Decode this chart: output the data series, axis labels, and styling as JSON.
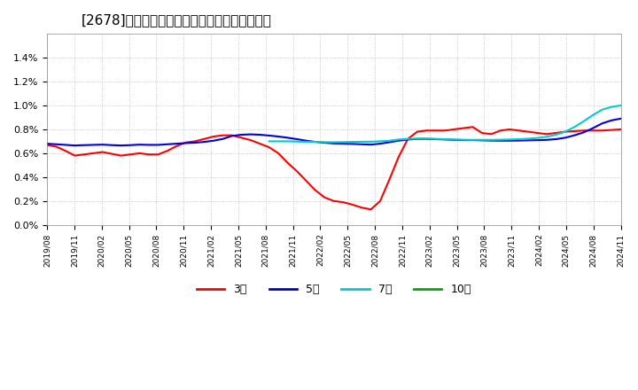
{
  "title": "[2678]　当期純利益マージンの標準偏差の推移",
  "ylabel": "",
  "ylim": [
    0.0,
    0.016
  ],
  "yticks": [
    0.0,
    0.002,
    0.004,
    0.006,
    0.008,
    0.01,
    0.012,
    0.014
  ],
  "ytick_labels": [
    "0.0%",
    "0.2%",
    "0.4%",
    "0.6%",
    "0.8%",
    "1.0%",
    "1.2%",
    "1.4%"
  ],
  "background_color": "#ffffff",
  "plot_bg_color": "#ffffff",
  "grid_color": "#aaaaaa",
  "series": {
    "3year": {
      "color": "#ff0000",
      "label": "3年",
      "data": [
        0.0067,
        0.00655,
        0.0062,
        0.0058,
        0.0059,
        0.006,
        0.0061,
        0.00595,
        0.0058,
        0.0059,
        0.006,
        0.0059,
        0.0059,
        0.0062,
        0.0066,
        0.0069,
        0.007,
        0.0072,
        0.0074,
        0.0075,
        0.0075,
        0.0073,
        0.0071,
        0.0068,
        0.0065,
        0.006,
        0.0052,
        0.0045,
        0.0037,
        0.0029,
        0.0023,
        0.002,
        0.0019,
        0.0017,
        0.00145,
        0.0013,
        0.002,
        0.0038,
        0.0057,
        0.0072,
        0.0078,
        0.0079,
        0.0079,
        0.0079,
        0.008,
        0.0081,
        0.0082,
        0.0077,
        0.0076,
        0.0079,
        0.008,
        0.0079,
        0.0078,
        0.0077,
        0.0076,
        0.0077,
        0.0078,
        0.00785,
        0.0079,
        0.0079,
        0.0079,
        0.00795,
        0.008
      ]
    },
    "5year": {
      "color": "#0000dd",
      "label": "5年",
      "data": [
        0.0068,
        0.00675,
        0.0067,
        0.00665,
        0.00668,
        0.0067,
        0.00672,
        0.00668,
        0.00665,
        0.00668,
        0.00672,
        0.0067,
        0.0067,
        0.00675,
        0.0068,
        0.00685,
        0.00688,
        0.00695,
        0.00705,
        0.0072,
        0.00745,
        0.00755,
        0.00758,
        0.00755,
        0.00748,
        0.0074,
        0.0073,
        0.00718,
        0.00705,
        0.00695,
        0.00688,
        0.00682,
        0.0068,
        0.00678,
        0.00675,
        0.00672,
        0.0068,
        0.00692,
        0.00705,
        0.00715,
        0.0072,
        0.0072,
        0.00718,
        0.00715,
        0.00712,
        0.0071,
        0.0071,
        0.00708,
        0.00706,
        0.00705,
        0.00705,
        0.00706,
        0.00708,
        0.0071,
        0.00712,
        0.00718,
        0.0073,
        0.0075,
        0.00775,
        0.0081,
        0.0085,
        0.00875,
        0.0089
      ]
    },
    "7year": {
      "color": "#00cccc",
      "label": "7年",
      "data": [
        null,
        null,
        null,
        null,
        null,
        null,
        null,
        null,
        null,
        null,
        null,
        null,
        null,
        null,
        null,
        null,
        null,
        null,
        null,
        null,
        null,
        null,
        null,
        null,
        0.007,
        0.007,
        0.007,
        0.00698,
        0.00696,
        0.00695,
        0.00693,
        0.00692,
        0.00693,
        0.00695,
        0.00696,
        0.00697,
        0.007,
        0.00705,
        0.00715,
        0.0072,
        0.00722,
        0.00722,
        0.0072,
        0.00718,
        0.00715,
        0.00713,
        0.00712,
        0.00712,
        0.00712,
        0.00713,
        0.00715,
        0.00718,
        0.00722,
        0.00728,
        0.00738,
        0.00755,
        0.0078,
        0.0082,
        0.00868,
        0.0092,
        0.00965,
        0.00988,
        0.01
      ]
    },
    "10year": {
      "color": "#00aa00",
      "label": "10年",
      "data": [
        null,
        null,
        null,
        null,
        null,
        null,
        null,
        null,
        null,
        null,
        null,
        null,
        null,
        null,
        null,
        null,
        null,
        null,
        null,
        null,
        null,
        null,
        null,
        null,
        null,
        null,
        null,
        null,
        null,
        null,
        null,
        null,
        null,
        null,
        null,
        null,
        null,
        null,
        null,
        null,
        null,
        null,
        null,
        null,
        null,
        null,
        null,
        null,
        null,
        null,
        null,
        null,
        null,
        null,
        null,
        null,
        null,
        null,
        null,
        null,
        null,
        null,
        null
      ]
    }
  },
  "x_tick_labels": [
    "2019/08",
    "2019/11",
    "2020/02",
    "2020/05",
    "2020/08",
    "2020/11",
    "2021/02",
    "2021/05",
    "2021/08",
    "2021/11",
    "2022/02",
    "2022/05",
    "2022/08",
    "2022/11",
    "2023/02",
    "2023/05",
    "2023/08",
    "2023/11",
    "2024/02",
    "2024/05",
    "2024/08",
    "2024/11"
  ],
  "legend_labels": [
    "3年",
    "5年",
    "7年",
    "10年"
  ],
  "legend_colors": [
    "#ff0000",
    "#0000dd",
    "#00cccc",
    "#00aa00"
  ]
}
